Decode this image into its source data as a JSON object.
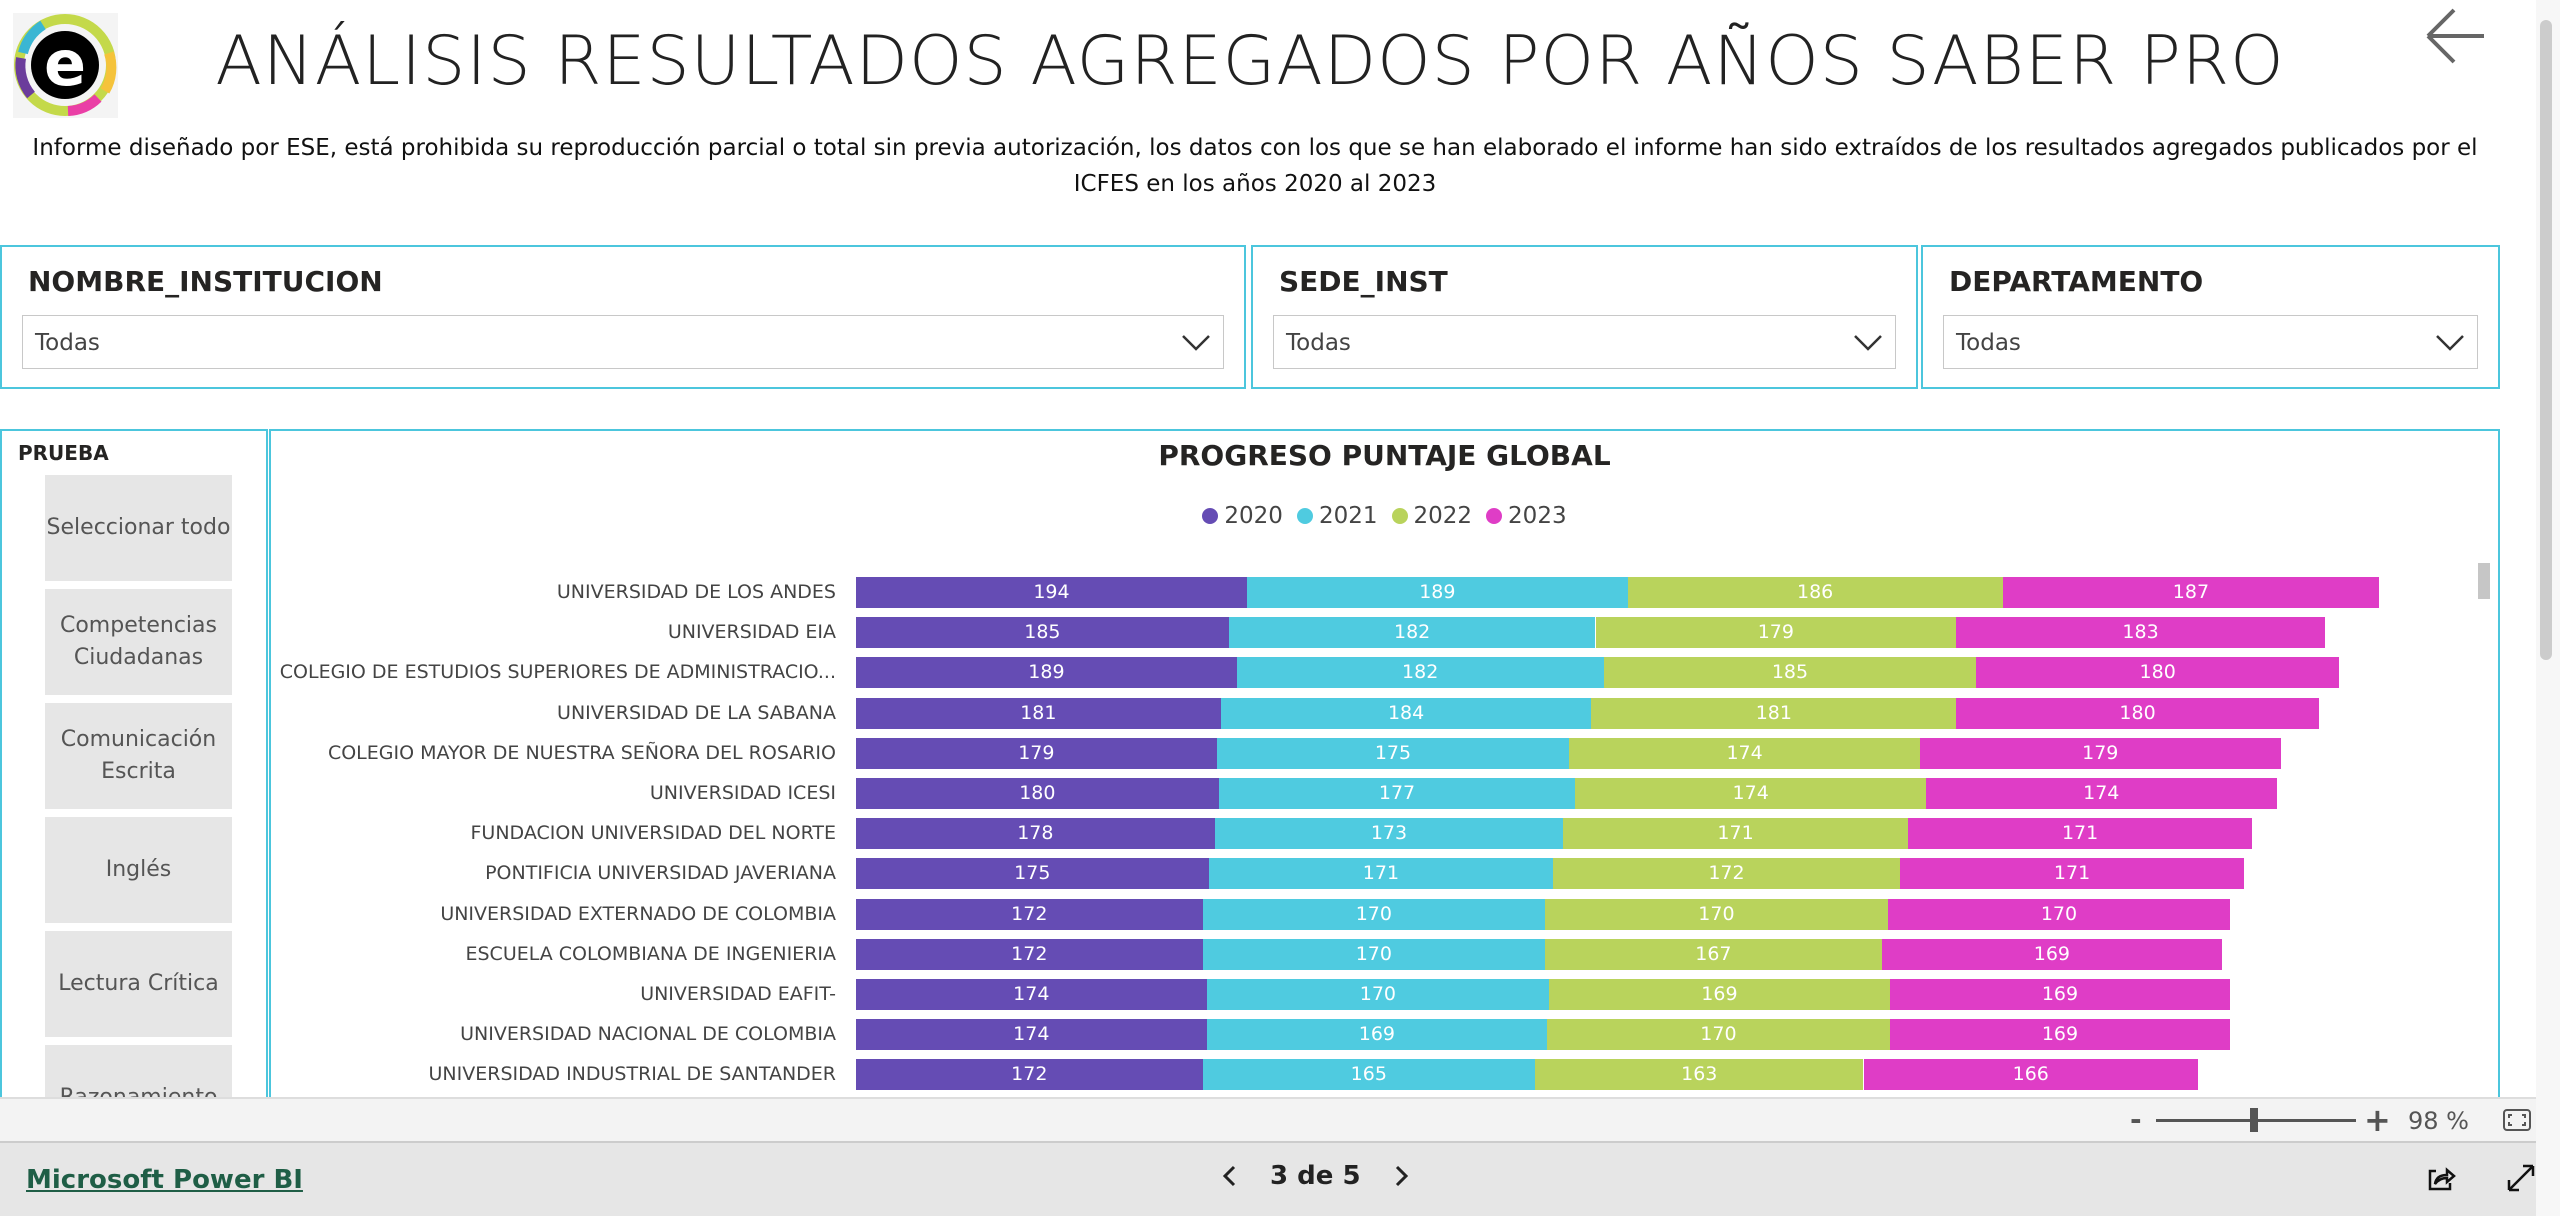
{
  "header": {
    "title": "ANÁLISIS RESULTADOS AGREGADOS POR AÑOS SABER PRO",
    "subtitle": "Informe diseñado por ESE, está prohibida su reproducción parcial o total sin previa autorización, los datos con los que se han elaborado el informe han sido extraídos de los resultados agregados publicados por el ICFES en los años 2020 al 2023",
    "logo_text": "e"
  },
  "filters": [
    {
      "label": "NOMBRE_INSTITUCION",
      "value": "Todas"
    },
    {
      "label": "SEDE_INST",
      "value": "Todas"
    },
    {
      "label": "DEPARTAMENTO",
      "value": "Todas"
    }
  ],
  "slicer": {
    "title": "PRUEBA",
    "items": [
      "Seleccionar todo",
      "Competencias Ciudadanas",
      "Comunicación Escrita",
      "Inglés",
      "Lectura Crítica",
      "Razonamiento"
    ]
  },
  "chart_data": {
    "type": "bar",
    "orientation": "horizontal",
    "stacked": true,
    "title": "PROGRESO PUNTAJE GLOBAL",
    "legend_position": "top",
    "grid": false,
    "categories": [
      "UNIVERSIDAD DE LOS ANDES",
      "UNIVERSIDAD EIA",
      "COLEGIO DE ESTUDIOS SUPERIORES DE ADMINISTRACIO...",
      "UNIVERSIDAD DE LA SABANA",
      "COLEGIO MAYOR DE NUESTRA SEÑORA DEL ROSARIO",
      "UNIVERSIDAD ICESI",
      "FUNDACION UNIVERSIDAD DEL NORTE",
      "PONTIFICIA UNIVERSIDAD JAVERIANA",
      "UNIVERSIDAD EXTERNADO DE COLOMBIA",
      "ESCUELA COLOMBIANA DE INGENIERIA",
      "UNIVERSIDAD EAFIT-",
      "UNIVERSIDAD NACIONAL DE COLOMBIA",
      "UNIVERSIDAD INDUSTRIAL DE SANTANDER"
    ],
    "series": [
      {
        "name": "2020",
        "color": "#654cb4",
        "values": [
          194,
          185,
          189,
          181,
          179,
          180,
          178,
          175,
          172,
          172,
          174,
          174,
          172
        ]
      },
      {
        "name": "2021",
        "color": "#4fcbe0",
        "values": [
          189,
          182,
          182,
          184,
          175,
          177,
          173,
          171,
          170,
          170,
          170,
          169,
          165
        ]
      },
      {
        "name": "2022",
        "color": "#b9d35c",
        "values": [
          186,
          179,
          185,
          181,
          174,
          174,
          171,
          172,
          170,
          167,
          169,
          170,
          163
        ]
      },
      {
        "name": "2023",
        "color": "#df3dc6",
        "values": [
          187,
          183,
          180,
          180,
          179,
          174,
          171,
          171,
          170,
          169,
          169,
          169,
          166
        ]
      }
    ]
  },
  "zoom": {
    "minus": "-",
    "plus": "+",
    "level": "98 %",
    "slider_fraction": 0.49
  },
  "footer": {
    "brand": "Microsoft Power BI",
    "page": "3 de 5"
  }
}
